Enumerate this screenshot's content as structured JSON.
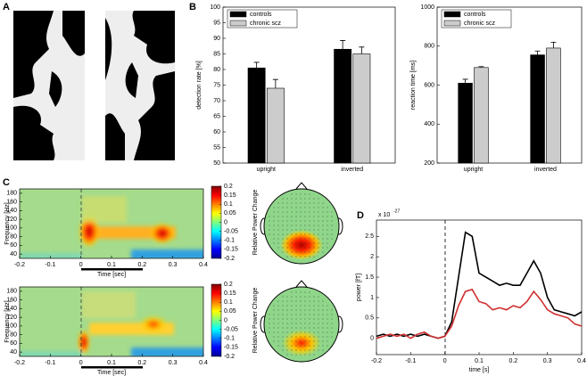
{
  "panel_labels": [
    "A",
    "B",
    "C",
    "D"
  ],
  "chart_data": [
    {
      "type": "bar",
      "ylabel": "detection rate [%]",
      "categories": [
        "upright",
        "inverted"
      ],
      "series": [
        {
          "name": "controls",
          "color": "#000000",
          "values": [
            80.5,
            86.5
          ],
          "errors": [
            1.8,
            2.8
          ]
        },
        {
          "name": "chronic scz",
          "color": "#cccccc",
          "values": [
            74,
            85
          ],
          "errors": [
            2.8,
            2.2
          ]
        }
      ],
      "ylim": [
        50,
        100
      ],
      "yticks": [
        50,
        55,
        60,
        65,
        70,
        75,
        80,
        85,
        90,
        95,
        100
      ],
      "legend": "upper left"
    },
    {
      "type": "bar",
      "ylabel": "reaction time [ms]",
      "categories": [
        "upright",
        "inverted"
      ],
      "series": [
        {
          "name": "controls",
          "color": "#000000",
          "values": [
            610,
            755
          ],
          "errors": [
            20,
            20
          ]
        },
        {
          "name": "chronic scz",
          "color": "#cccccc",
          "values": [
            690,
            790
          ],
          "errors": [
            5,
            30
          ]
        }
      ],
      "ylim": [
        200,
        1000
      ],
      "yticks": [
        200,
        400,
        600,
        800,
        1000
      ],
      "legend": "upper left"
    },
    {
      "type": "heatmap",
      "xlabel": "Time [sec]",
      "ylabel": "Frequency [Hz]",
      "colorbar_label": "Relative Power Change",
      "xlim": [
        -0.2,
        0.4
      ],
      "xticks": [
        -0.2,
        -0.1,
        0,
        0.1,
        0.2,
        0.3,
        0.4
      ],
      "ylim": [
        30,
        190
      ],
      "yticks": [
        40,
        60,
        80,
        100,
        120,
        140,
        160,
        180
      ],
      "clim": [
        -0.2,
        0.2
      ],
      "cticks": [
        -0.2,
        -0.15,
        -0.1,
        -0.05,
        0,
        0.05,
        0.1,
        0.15,
        0.2
      ]
    },
    {
      "type": "heatmap",
      "xlabel": "Time [sec]",
      "ylabel": "Frequency [Hz]",
      "colorbar_label": "Relative Power Change",
      "xlim": [
        -0.2,
        0.4
      ],
      "xticks": [
        -0.2,
        -0.1,
        0,
        0.1,
        0.2,
        0.3,
        0.4
      ],
      "ylim": [
        30,
        190
      ],
      "yticks": [
        40,
        60,
        80,
        100,
        120,
        140,
        160,
        180
      ],
      "clim": [
        -0.2,
        0.2
      ],
      "cticks": [
        -0.2,
        -0.15,
        -0.1,
        -0.05,
        0,
        0.05,
        0.1,
        0.15,
        0.2
      ]
    },
    {
      "type": "line",
      "xlabel": "time [s]",
      "ylabel": "power [fT]",
      "exponent_label": "x 10",
      "exponent_power": "-27",
      "x": [
        -0.2,
        -0.18,
        -0.16,
        -0.14,
        -0.12,
        -0.1,
        -0.08,
        -0.06,
        -0.04,
        -0.02,
        0,
        0.02,
        0.04,
        0.06,
        0.08,
        0.1,
        0.12,
        0.14,
        0.16,
        0.18,
        0.2,
        0.22,
        0.24,
        0.26,
        0.28,
        0.3,
        0.32,
        0.34,
        0.36,
        0.38,
        0.4
      ],
      "series": [
        {
          "color": "#000000",
          "values": [
            0.05,
            0.1,
            0.05,
            0.1,
            0.05,
            0.1,
            0.05,
            0.1,
            0.05,
            0,
            0.05,
            0.4,
            1.5,
            2.6,
            2.5,
            1.6,
            1.5,
            1.4,
            1.3,
            1.35,
            1.3,
            1.3,
            1.6,
            1.9,
            1.6,
            1.0,
            0.7,
            0.65,
            0.6,
            0.55,
            0.65
          ]
        },
        {
          "color": "#d03030",
          "values": [
            0,
            0.05,
            0.1,
            0.05,
            0.1,
            0,
            0.1,
            0.15,
            0.05,
            0,
            0.05,
            0.3,
            0.8,
            1.15,
            1.2,
            0.9,
            0.85,
            0.7,
            0.75,
            0.7,
            0.8,
            0.75,
            0.9,
            1.15,
            0.95,
            0.7,
            0.6,
            0.55,
            0.5,
            0.35,
            0.3
          ]
        }
      ],
      "xlim": [
        -0.2,
        0.4
      ],
      "xticks": [
        -0.2,
        -0.1,
        0,
        0.1,
        0.2,
        0.3,
        0.4
      ],
      "ylim": [
        -0.4,
        2.9
      ],
      "yticks": [
        0,
        0.5,
        1,
        1.5,
        2,
        2.5
      ]
    }
  ]
}
